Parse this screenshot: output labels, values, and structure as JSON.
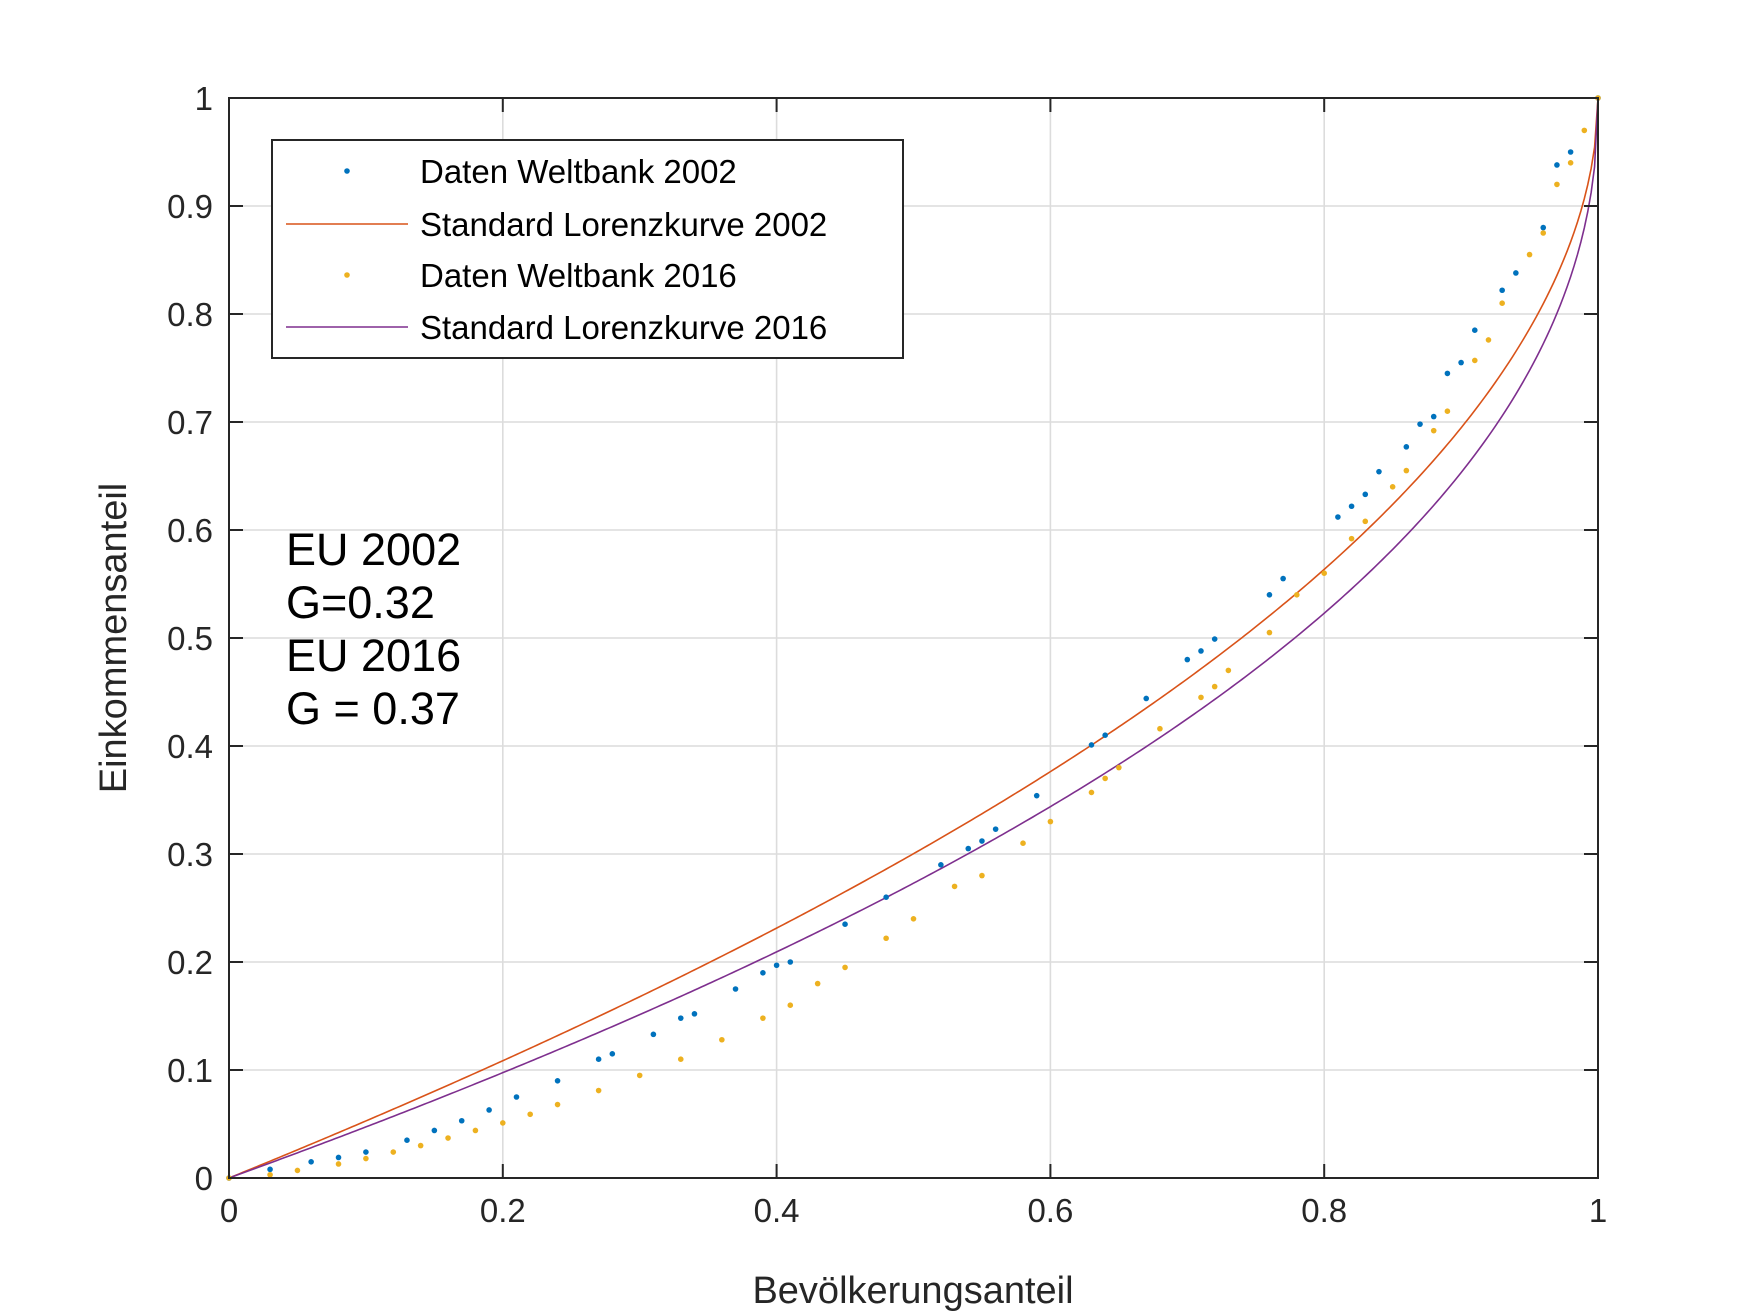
{
  "chart_data": {
    "type": "line",
    "xlabel": "Bevölkerungsanteil",
    "ylabel": "Einkommensanteil",
    "xlim": [
      0,
      1
    ],
    "ylim": [
      0,
      1
    ],
    "x_ticks": [
      "0",
      "0.2",
      "0.4",
      "0.6",
      "0.8",
      "1"
    ],
    "y_ticks": [
      "0",
      "0.1",
      "0.2",
      "0.3",
      "0.4",
      "0.5",
      "0.6",
      "0.7",
      "0.8",
      "0.9",
      "1"
    ],
    "grid": true,
    "legend_position": "top-left",
    "annotation": [
      "EU 2002",
      "G=0.32",
      "EU 2016",
      "G = 0.37"
    ],
    "series": [
      {
        "name": "Daten Weltbank 2002",
        "style": "dots",
        "color": "#0072BD",
        "points": [
          [
            0.0,
            0.0
          ],
          [
            0.03,
            0.008
          ],
          [
            0.06,
            0.015
          ],
          [
            0.08,
            0.019
          ],
          [
            0.1,
            0.024
          ],
          [
            0.13,
            0.035
          ],
          [
            0.15,
            0.044
          ],
          [
            0.17,
            0.053
          ],
          [
            0.19,
            0.063
          ],
          [
            0.21,
            0.075
          ],
          [
            0.24,
            0.09
          ],
          [
            0.27,
            0.11
          ],
          [
            0.28,
            0.115
          ],
          [
            0.31,
            0.133
          ],
          [
            0.33,
            0.148
          ],
          [
            0.34,
            0.152
          ],
          [
            0.37,
            0.175
          ],
          [
            0.39,
            0.19
          ],
          [
            0.4,
            0.197
          ],
          [
            0.41,
            0.2
          ],
          [
            0.45,
            0.235
          ],
          [
            0.48,
            0.26
          ],
          [
            0.52,
            0.29
          ],
          [
            0.54,
            0.305
          ],
          [
            0.55,
            0.312
          ],
          [
            0.56,
            0.323
          ],
          [
            0.59,
            0.354
          ],
          [
            0.63,
            0.401
          ],
          [
            0.64,
            0.41
          ],
          [
            0.67,
            0.444
          ],
          [
            0.7,
            0.48
          ],
          [
            0.71,
            0.488
          ],
          [
            0.72,
            0.499
          ],
          [
            0.76,
            0.54
          ],
          [
            0.77,
            0.555
          ],
          [
            0.81,
            0.612
          ],
          [
            0.82,
            0.622
          ],
          [
            0.83,
            0.633
          ],
          [
            0.84,
            0.654
          ],
          [
            0.86,
            0.677
          ],
          [
            0.87,
            0.698
          ],
          [
            0.88,
            0.705
          ],
          [
            0.89,
            0.745
          ],
          [
            0.9,
            0.755
          ],
          [
            0.91,
            0.785
          ],
          [
            0.93,
            0.822
          ],
          [
            0.94,
            0.838
          ],
          [
            0.96,
            0.88
          ],
          [
            0.97,
            0.938
          ],
          [
            0.98,
            0.95
          ],
          [
            1.0,
            1.0
          ]
        ]
      },
      {
        "name": "Standard Lorenzkurve 2002",
        "style": "line",
        "color": "#D95319",
        "model": "standard",
        "gini": 0.32
      },
      {
        "name": "Daten Weltbank 2016",
        "style": "dots",
        "color": "#EDB120",
        "points": [
          [
            0.0,
            0.0
          ],
          [
            0.03,
            0.003
          ],
          [
            0.05,
            0.007
          ],
          [
            0.08,
            0.013
          ],
          [
            0.1,
            0.018
          ],
          [
            0.12,
            0.024
          ],
          [
            0.14,
            0.03
          ],
          [
            0.16,
            0.037
          ],
          [
            0.18,
            0.044
          ],
          [
            0.2,
            0.051
          ],
          [
            0.22,
            0.059
          ],
          [
            0.24,
            0.068
          ],
          [
            0.27,
            0.081
          ],
          [
            0.3,
            0.095
          ],
          [
            0.33,
            0.11
          ],
          [
            0.36,
            0.128
          ],
          [
            0.39,
            0.148
          ],
          [
            0.41,
            0.16
          ],
          [
            0.43,
            0.18
          ],
          [
            0.45,
            0.195
          ],
          [
            0.48,
            0.222
          ],
          [
            0.5,
            0.24
          ],
          [
            0.53,
            0.27
          ],
          [
            0.55,
            0.28
          ],
          [
            0.58,
            0.31
          ],
          [
            0.6,
            0.33
          ],
          [
            0.63,
            0.357
          ],
          [
            0.64,
            0.37
          ],
          [
            0.65,
            0.38
          ],
          [
            0.68,
            0.416
          ],
          [
            0.71,
            0.445
          ],
          [
            0.72,
            0.455
          ],
          [
            0.73,
            0.47
          ],
          [
            0.76,
            0.505
          ],
          [
            0.78,
            0.54
          ],
          [
            0.8,
            0.56
          ],
          [
            0.82,
            0.592
          ],
          [
            0.83,
            0.608
          ],
          [
            0.85,
            0.64
          ],
          [
            0.86,
            0.655
          ],
          [
            0.88,
            0.692
          ],
          [
            0.89,
            0.71
          ],
          [
            0.91,
            0.757
          ],
          [
            0.92,
            0.776
          ],
          [
            0.93,
            0.81
          ],
          [
            0.95,
            0.855
          ],
          [
            0.96,
            0.875
          ],
          [
            0.97,
            0.92
          ],
          [
            0.98,
            0.94
          ],
          [
            0.99,
            0.97
          ],
          [
            1.0,
            1.0
          ]
        ]
      },
      {
        "name": "Standard Lorenzkurve 2016",
        "style": "line",
        "color": "#7E2F8E",
        "model": "standard",
        "gini": 0.37
      }
    ]
  }
}
